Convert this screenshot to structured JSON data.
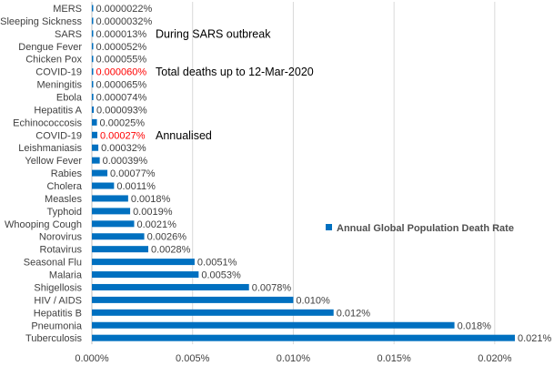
{
  "chart_data": {
    "type": "bar",
    "orientation": "horizontal",
    "categories": [
      "MERS",
      "Sleeping Sickness",
      "SARS",
      "Dengue Fever",
      "Chicken Pox",
      "COVID-19",
      "Meningitis",
      "Ebola",
      "Hepatitis A",
      "Echinococcosis",
      "COVID-19",
      "Leishmaniasis",
      "Yellow Fever",
      "Rabies",
      "Cholera",
      "Measles",
      "Typhoid",
      "Whooping Cough",
      "Norovirus",
      "Rotavirus",
      "Seasonal Flu",
      "Malaria",
      "Shigellosis",
      "HIV / AIDS",
      "Hepatitis B",
      "Pneumonia",
      "Tuberculosis"
    ],
    "values": [
      2.2e-06,
      3.2e-06,
      1.3e-05,
      5.2e-05,
      5.5e-05,
      6e-05,
      6.5e-05,
      7.4e-05,
      9.3e-05,
      0.00025,
      0.00027,
      0.00032,
      0.00039,
      0.00077,
      0.0011,
      0.0018,
      0.0019,
      0.0021,
      0.0026,
      0.0028,
      0.0051,
      0.0053,
      0.0078,
      0.01,
      0.012,
      0.018,
      0.021
    ],
    "value_labels": [
      "0.0000022%",
      "0.0000032%",
      "0.000013%",
      "0.000052%",
      "0.000055%",
      "0.000060%",
      "0.000065%",
      "0.000074%",
      "0.000093%",
      "0.00025%",
      "0.00027%",
      "0.00032%",
      "0.00039%",
      "0.00077%",
      "0.0011%",
      "0.0018%",
      "0.0019%",
      "0.0021%",
      "0.0026%",
      "0.0028%",
      "0.0051%",
      "0.0053%",
      "0.0078%",
      "0.010%",
      "0.012%",
      "0.018%",
      "0.021%"
    ],
    "highlight_indices": [
      5,
      10
    ],
    "series_name": "Annual Global Population Death Rate",
    "xlim": [
      0,
      0.021
    ],
    "xticks": [
      0,
      0.005,
      0.01,
      0.015,
      0.02
    ],
    "xtick_labels": [
      "0.000%",
      "0.005%",
      "0.010%",
      "0.015%",
      "0.020%"
    ],
    "annotations": [
      {
        "text": "During SARS outbreak",
        "category_index": 2
      },
      {
        "text": "Total deaths up to 12-Mar-2020",
        "category_index": 5
      },
      {
        "text": "Annualised",
        "category_index": 10
      }
    ],
    "grid": true,
    "legend_position": "right"
  },
  "colors": {
    "bar": "#0070c0",
    "highlight_label": "#ff0000"
  }
}
